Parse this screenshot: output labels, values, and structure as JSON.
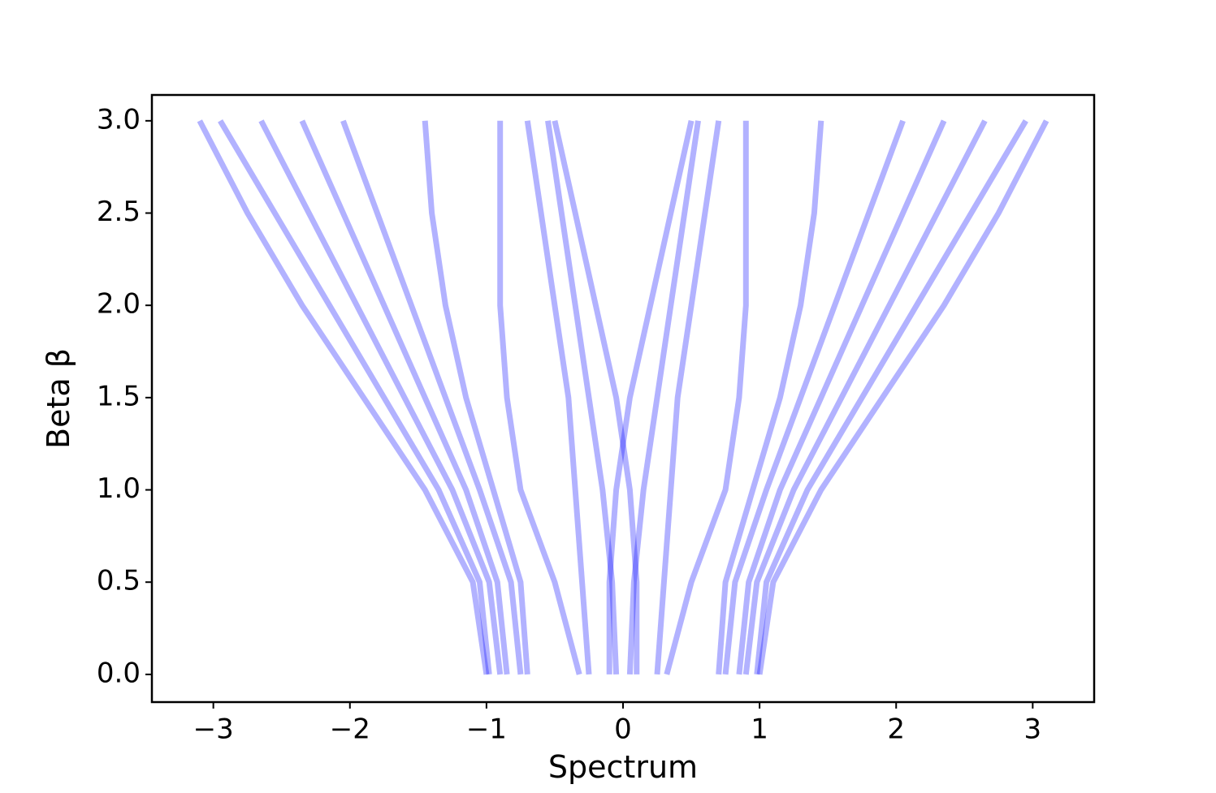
{
  "chart_data": {
    "type": "line",
    "x_label": "Spectrum",
    "y_label": "Beta β",
    "xlim": [
      -3.45,
      3.45
    ],
    "ylim": [
      -0.15,
      3.14
    ],
    "xticks": [
      {
        "value": -3,
        "label": "−3"
      },
      {
        "value": -2,
        "label": "−2"
      },
      {
        "value": -1,
        "label": "−1"
      },
      0,
      1,
      2,
      3
    ],
    "yticks": [
      {
        "value": 0,
        "label": "0.0"
      },
      0.5,
      {
        "value": 1,
        "label": "1.0"
      },
      1.5,
      {
        "value": 2,
        "label": "2.0"
      },
      2.5,
      {
        "value": 3,
        "label": "3.0"
      }
    ],
    "y": [
      0,
      0.5,
      1,
      1.5,
      2,
      2.5,
      3
    ],
    "series": [
      {
        "color": "#0000ff",
        "x": [
          -1.0,
          -1.1,
          -1.45,
          -1.9,
          -2.35,
          -2.75,
          -3.1
        ]
      },
      {
        "color": "#0000ff",
        "x": [
          -0.98,
          -1.05,
          -1.35,
          -1.75,
          -2.15,
          -2.55,
          -2.95
        ]
      },
      {
        "color": "#0000ff",
        "x": [
          -0.9,
          -0.98,
          -1.25,
          -1.6,
          -1.95,
          -2.3,
          -2.65
        ]
      },
      {
        "color": "#0000ff",
        "x": [
          -0.85,
          -0.92,
          -1.15,
          -1.45,
          -1.75,
          -2.05,
          -2.35
        ]
      },
      {
        "color": "#0000ff",
        "x": [
          -0.75,
          -0.82,
          -1.05,
          -1.3,
          -1.55,
          -1.8,
          -2.05
        ]
      },
      {
        "color": "#0000ff",
        "x": [
          -0.7,
          -0.75,
          -0.95,
          -1.15,
          -1.3,
          -1.4,
          -1.45
        ]
      },
      {
        "color": "#0000ff",
        "x": [
          -0.32,
          -0.5,
          -0.75,
          -0.85,
          -0.9,
          -0.9,
          -0.9
        ]
      },
      {
        "color": "#0000ff",
        "x": [
          -0.25,
          -0.3,
          -0.35,
          -0.4,
          -0.5,
          -0.6,
          -0.7
        ]
      },
      {
        "color": "#0000ff",
        "x": [
          -0.1,
          -0.1,
          -0.05,
          0.05,
          0.2,
          0.35,
          0.5
        ]
      },
      {
        "color": "#0000ff",
        "x": [
          -0.05,
          -0.08,
          -0.15,
          -0.25,
          -0.35,
          -0.45,
          -0.55
        ]
      },
      {
        "color": "#0000ff",
        "x": [
          1.0,
          1.1,
          1.45,
          1.9,
          2.35,
          2.75,
          3.1
        ]
      },
      {
        "color": "#0000ff",
        "x": [
          0.98,
          1.05,
          1.35,
          1.75,
          2.15,
          2.55,
          2.95
        ]
      },
      {
        "color": "#0000ff",
        "x": [
          0.9,
          0.98,
          1.25,
          1.6,
          1.95,
          2.3,
          2.65
        ]
      },
      {
        "color": "#0000ff",
        "x": [
          0.85,
          0.92,
          1.15,
          1.45,
          1.75,
          2.05,
          2.35
        ]
      },
      {
        "color": "#0000ff",
        "x": [
          0.75,
          0.82,
          1.05,
          1.3,
          1.55,
          1.8,
          2.05
        ]
      },
      {
        "color": "#0000ff",
        "x": [
          0.7,
          0.75,
          0.95,
          1.15,
          1.3,
          1.4,
          1.45
        ]
      },
      {
        "color": "#0000ff",
        "x": [
          0.32,
          0.5,
          0.75,
          0.85,
          0.9,
          0.9,
          0.9
        ]
      },
      {
        "color": "#0000ff",
        "x": [
          0.25,
          0.3,
          0.35,
          0.4,
          0.5,
          0.6,
          0.7
        ]
      },
      {
        "color": "#0000ff",
        "x": [
          0.1,
          0.1,
          0.05,
          -0.05,
          -0.2,
          -0.35,
          -0.5
        ]
      },
      {
        "color": "#0000ff",
        "x": [
          0.05,
          0.08,
          0.15,
          0.25,
          0.35,
          0.45,
          0.55
        ]
      }
    ]
  }
}
